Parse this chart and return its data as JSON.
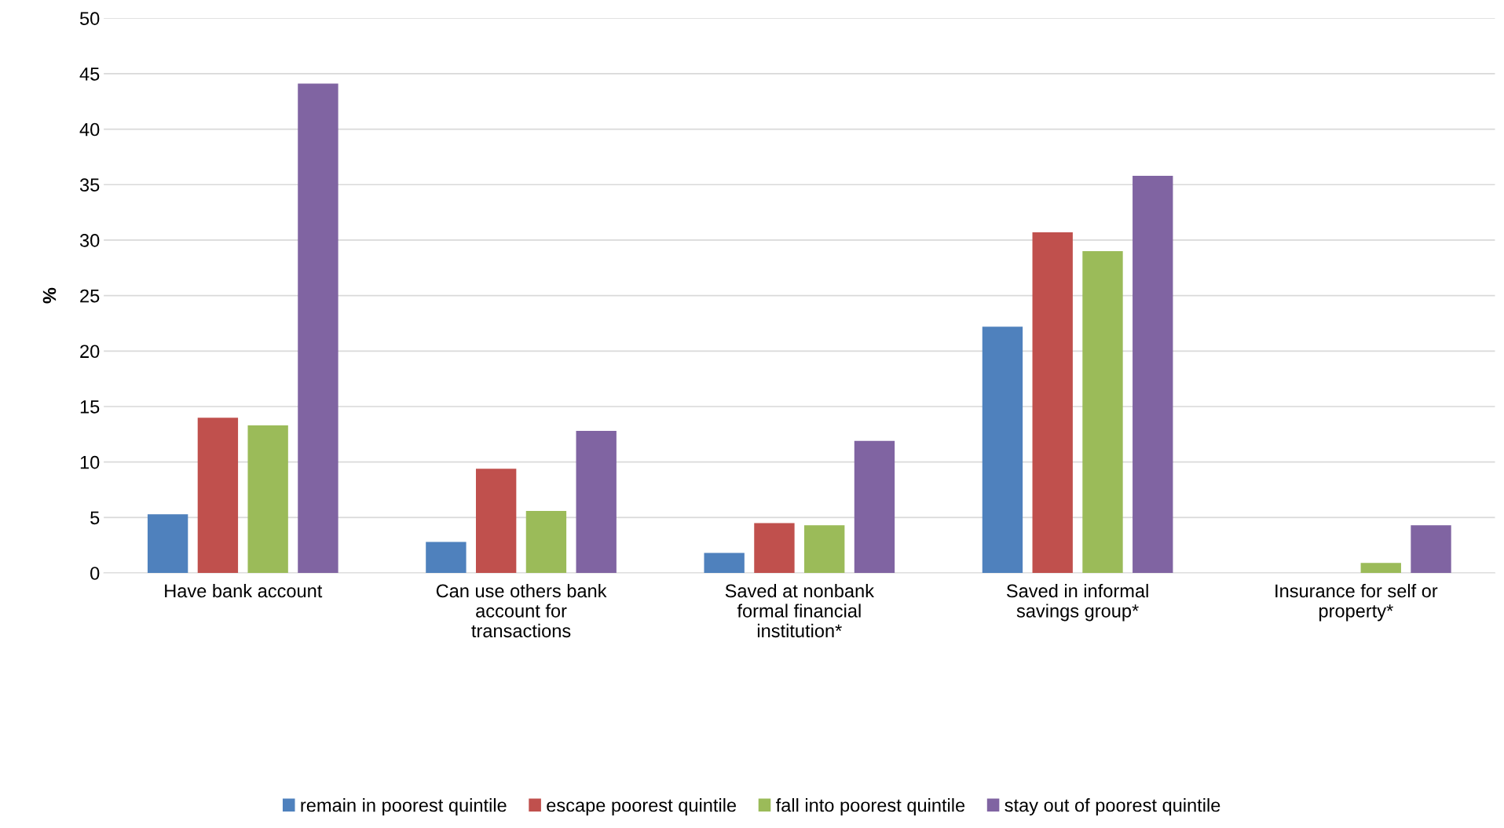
{
  "chart_data": {
    "type": "bar",
    "ylabel": "%",
    "categories": [
      "Have bank account",
      "Can use others bank\naccount for\ntransactions",
      "Saved at nonbank\nformal financial\ninstitution*",
      "Saved in informal\nsavings group*",
      "Insurance for self or\nproperty*"
    ],
    "series": [
      {
        "name": "remain in poorest quintile",
        "color": "#4f81bd",
        "values": [
          5.3,
          2.8,
          1.8,
          22.2,
          0
        ]
      },
      {
        "name": "escape poorest quintile",
        "color": "#c0504d",
        "values": [
          14.0,
          9.4,
          4.5,
          30.7,
          0
        ]
      },
      {
        "name": "fall into poorest quintile",
        "color": "#9bbb59",
        "values": [
          13.3,
          5.6,
          4.3,
          29.0,
          0.9
        ]
      },
      {
        "name": "stay out of poorest quintile",
        "color": "#8064a2",
        "values": [
          44.1,
          12.8,
          11.9,
          35.8,
          4.3
        ]
      }
    ],
    "ylim": [
      0,
      50
    ],
    "yticks": [
      0,
      5,
      10,
      15,
      20,
      25,
      30,
      35,
      40,
      45,
      50
    ],
    "grid": "y",
    "legend": "bottom"
  }
}
